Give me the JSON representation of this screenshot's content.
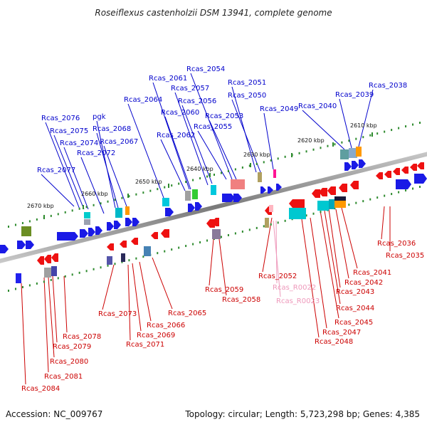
{
  "title": "Roseiflexus castenholzii DSM 13941, complete genome",
  "footer": {
    "accession": "Accession: NC_009767",
    "topology": "Topology: circular; Length: 5,723,298 bp; Genes: 4,385"
  },
  "colors": {
    "forward_label": "#0000cc",
    "reverse_label": "#cc0000",
    "rna_label": "#ee99bb",
    "backbone": "#8c8c8c",
    "tick": "#2e8b2e"
  },
  "kbp_markers": [
    "2670 kbp",
    "2660 kbp",
    "2650 kbp",
    "2640 kbp",
    "2630 kbp",
    "2620 kbp",
    "2610 kbp"
  ],
  "forward_genes": [
    "Rcas_2077",
    "Rcas_2076",
    "Rcas_2075",
    "Rcas_2074",
    "Rcas_2072",
    "pgk",
    "Rcas_2068",
    "Rcas_2067",
    "Rcas_2064",
    "Rcas_2062",
    "Rcas_2061",
    "Rcas_2060",
    "Rcas_2057",
    "Rcas_2056",
    "Rcas_2055",
    "Rcas_2054",
    "Rcas_2053",
    "Rcas_2051",
    "Rcas_2050",
    "Rcas_2049",
    "Rcas_2040",
    "Rcas_2039",
    "Rcas_2038"
  ],
  "reverse_genes": [
    "Rcas_2084",
    "Rcas_2081",
    "Rcas_2080",
    "Rcas_2079",
    "Rcas_2078",
    "Rcas_2073",
    "Rcas_2071",
    "Rcas_2069",
    "Rcas_2066",
    "Rcas_2065",
    "Rcas_2059",
    "Rcas_2058",
    "Rcas_2052",
    "Rcas_2048",
    "Rcas_2047",
    "Rcas_2045",
    "Rcas_2044",
    "Rcas_2043",
    "Rcas_2042",
    "Rcas_2041",
    "Rcas_2036",
    "Rcas_2035"
  ],
  "rna_genes": [
    "Rcas_R0022",
    "Rcas_R0023"
  ]
}
